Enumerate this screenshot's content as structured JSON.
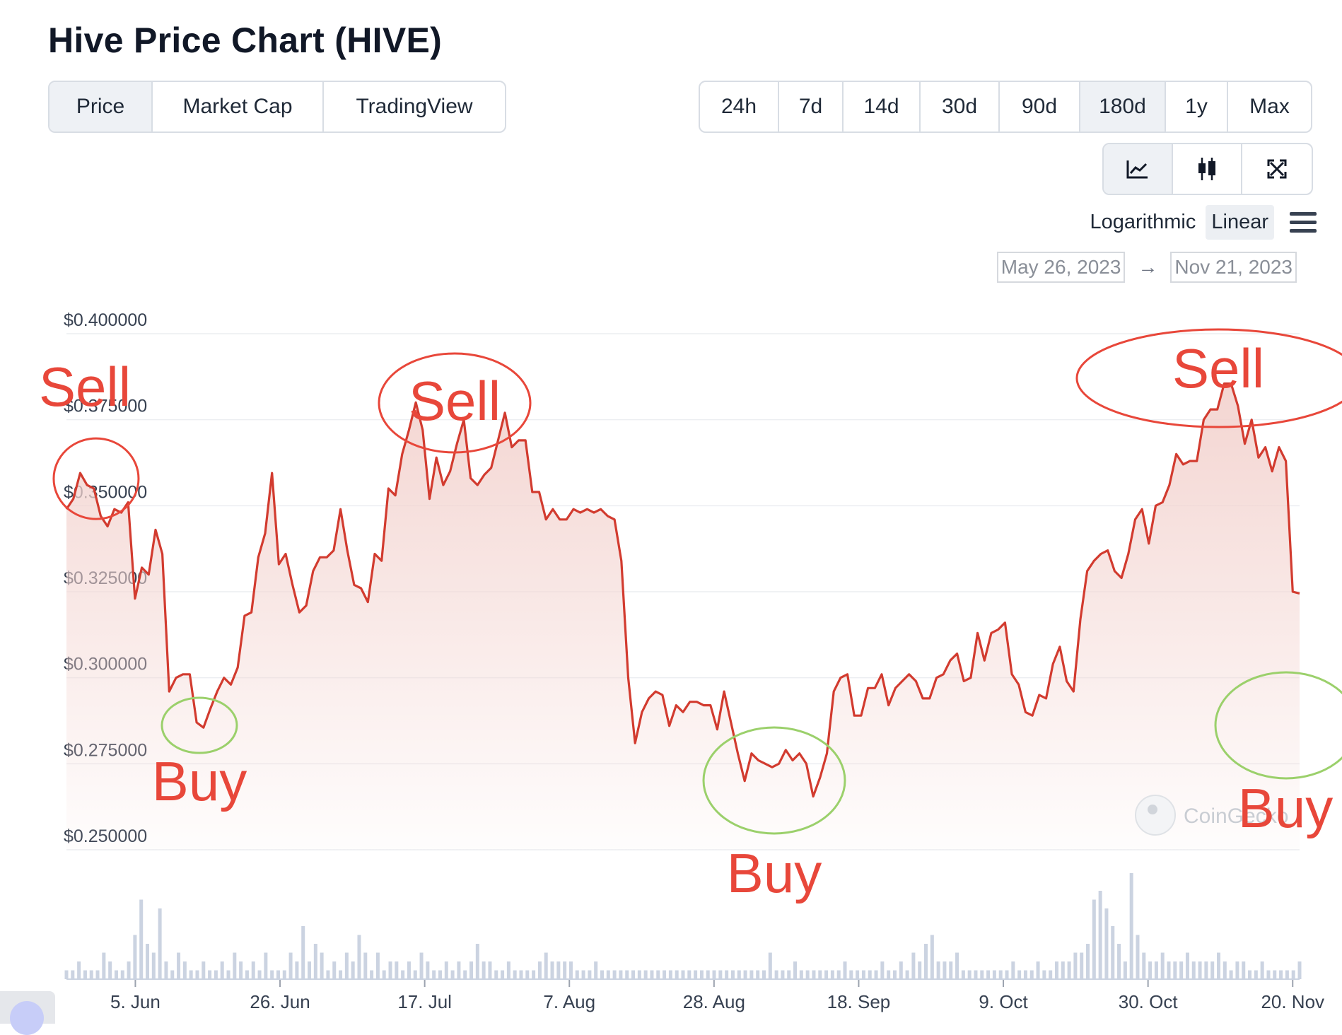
{
  "page": {
    "title": "Hive Price Chart (HIVE)"
  },
  "chart_tabs": [
    "Price",
    "Market Cap",
    "TradingView"
  ],
  "chart_tab_active": "Price",
  "range_tabs": [
    "24h",
    "7d",
    "14d",
    "30d",
    "90d",
    "180d",
    "1y",
    "Max"
  ],
  "range_tab_active": "180d",
  "view_icons": [
    "line-chart-icon",
    "candlestick-icon",
    "fullscreen-icon"
  ],
  "scale": {
    "log_label": "Logarithmic",
    "linear_label": "Linear",
    "active": "Linear"
  },
  "date_range": {
    "from": "May 26, 2023",
    "arrow": "→",
    "to": "Nov 21, 2023"
  },
  "watermark": "CoinGecko",
  "colors": {
    "line": "#d23b2f",
    "area_top": "#f3d3cf",
    "volume": "#cbd3e1",
    "annotation_red": "#e8473a",
    "annotation_green": "#9bd06b"
  },
  "annotations": [
    {
      "label": "Sell",
      "kind": "sell",
      "date": "2023-05-30",
      "price": 0.3595
    },
    {
      "label": "Sell",
      "kind": "sell",
      "date": "2023-07-16",
      "price": 0.38
    },
    {
      "label": "Sell",
      "kind": "sell",
      "date": "2023-11-07",
      "price": 0.3855
    },
    {
      "label": "Buy",
      "kind": "buy",
      "date": "2023-06-14",
      "price": 0.2865
    },
    {
      "label": "Buy",
      "kind": "buy",
      "date": "2023-09-04",
      "price": 0.2695
    },
    {
      "label": "Buy",
      "kind": "buy",
      "date": "2023-11-21",
      "price": 0.3245
    }
  ],
  "chart_data": {
    "type": "line",
    "title": "",
    "xlabel": "",
    "ylabel": "",
    "x_ticks": [
      "5. Jun",
      "26. Jun",
      "17. Jul",
      "7. Aug",
      "28. Aug",
      "18. Sep",
      "9. Oct",
      "30. Oct",
      "20. Nov"
    ],
    "y_ticks": [
      "$0.250000",
      "$0.275000",
      "$0.300000",
      "$0.325000",
      "$0.350000",
      "$0.375000",
      "$0.400000"
    ],
    "ylim": [
      0.25,
      0.4
    ],
    "x_start": "2023-05-26",
    "x_end": "2023-11-21",
    "grid": true,
    "series": [
      {
        "values": [
          0.349,
          0.352,
          0.3595,
          0.356,
          0.355,
          0.347,
          0.344,
          0.349,
          0.348,
          0.351,
          0.323,
          0.332,
          0.33,
          0.343,
          0.336,
          0.296,
          0.3,
          0.301,
          0.301,
          0.287,
          0.2855,
          0.291,
          0.296,
          0.3,
          0.298,
          0.303,
          0.318,
          0.319,
          0.335,
          0.342,
          0.3595,
          0.333,
          0.336,
          0.327,
          0.319,
          0.321,
          0.331,
          0.335,
          0.335,
          0.337,
          0.349,
          0.337,
          0.327,
          0.326,
          0.322,
          0.336,
          0.334,
          0.355,
          0.353,
          0.365,
          0.372,
          0.38,
          0.372,
          0.352,
          0.364,
          0.356,
          0.36,
          0.368,
          0.375,
          0.358,
          0.356,
          0.359,
          0.361,
          0.369,
          0.377,
          0.367,
          0.369,
          0.369,
          0.354,
          0.354,
          0.346,
          0.349,
          0.346,
          0.346,
          0.349,
          0.348,
          0.349,
          0.348,
          0.349,
          0.347,
          0.346,
          0.334,
          0.3,
          0.281,
          0.29,
          0.294,
          0.296,
          0.295,
          0.286,
          0.292,
          0.29,
          0.293,
          0.293,
          0.292,
          0.292,
          0.285,
          0.296,
          0.287,
          0.278,
          0.27,
          0.278,
          0.276,
          0.275,
          0.274,
          0.275,
          0.279,
          0.276,
          0.278,
          0.275,
          0.2655,
          0.271,
          0.278,
          0.296,
          0.3,
          0.301,
          0.289,
          0.289,
          0.297,
          0.297,
          0.301,
          0.292,
          0.297,
          0.299,
          0.301,
          0.299,
          0.294,
          0.294,
          0.3,
          0.301,
          0.305,
          0.307,
          0.299,
          0.3,
          0.313,
          0.305,
          0.313,
          0.314,
          0.316,
          0.301,
          0.298,
          0.29,
          0.289,
          0.295,
          0.294,
          0.304,
          0.309,
          0.299,
          0.296,
          0.317,
          0.331,
          0.334,
          0.336,
          0.337,
          0.331,
          0.329,
          0.336,
          0.346,
          0.349,
          0.339,
          0.35,
          0.351,
          0.356,
          0.365,
          0.362,
          0.363,
          0.363,
          0.375,
          0.378,
          0.378,
          0.3855,
          0.3855,
          0.379,
          0.368,
          0.375,
          0.364,
          0.367,
          0.36,
          0.367,
          0.363,
          0.325,
          0.3245
        ]
      }
    ],
    "volume": [
      1,
      1,
      2,
      1,
      1,
      1,
      3,
      2,
      1,
      1,
      2,
      5,
      9,
      4,
      3,
      8,
      2,
      1,
      3,
      2,
      1,
      1,
      2,
      1,
      1,
      2,
      1,
      3,
      2,
      1,
      2,
      1,
      3,
      1,
      1,
      1,
      3,
      2,
      6,
      2,
      4,
      3,
      1,
      2,
      1,
      3,
      2,
      5,
      3,
      1,
      3,
      1,
      2,
      2,
      1,
      2,
      1,
      3,
      2,
      1,
      1,
      2,
      1,
      2,
      1,
      2,
      4,
      2,
      2,
      1,
      1,
      2,
      1,
      1,
      1,
      1,
      2,
      3,
      2,
      2,
      2,
      2,
      1,
      1,
      1,
      2,
      1,
      1,
      1,
      1,
      1,
      1,
      1,
      1,
      1,
      1,
      1,
      1,
      1,
      1,
      1,
      1,
      1,
      1,
      1,
      1,
      1,
      1,
      1,
      1,
      1,
      1,
      1,
      3,
      1,
      1,
      1,
      2,
      1,
      1,
      1,
      1,
      1,
      1,
      1,
      2,
      1,
      1,
      1,
      1,
      1,
      2,
      1,
      1,
      2,
      1,
      3,
      2,
      4,
      5,
      2,
      2,
      2,
      3,
      1,
      1,
      1,
      1,
      1,
      1,
      1,
      1,
      2,
      1,
      1,
      1,
      2,
      1,
      1,
      2,
      2,
      2,
      3,
      3,
      4,
      9,
      10,
      8,
      6,
      4,
      2,
      12,
      5,
      3,
      2,
      2,
      3,
      2,
      2,
      2,
      3,
      2,
      2,
      2,
      2,
      3,
      2,
      1,
      2,
      2,
      1,
      1,
      2,
      1,
      1,
      1,
      1,
      1,
      2
    ]
  }
}
